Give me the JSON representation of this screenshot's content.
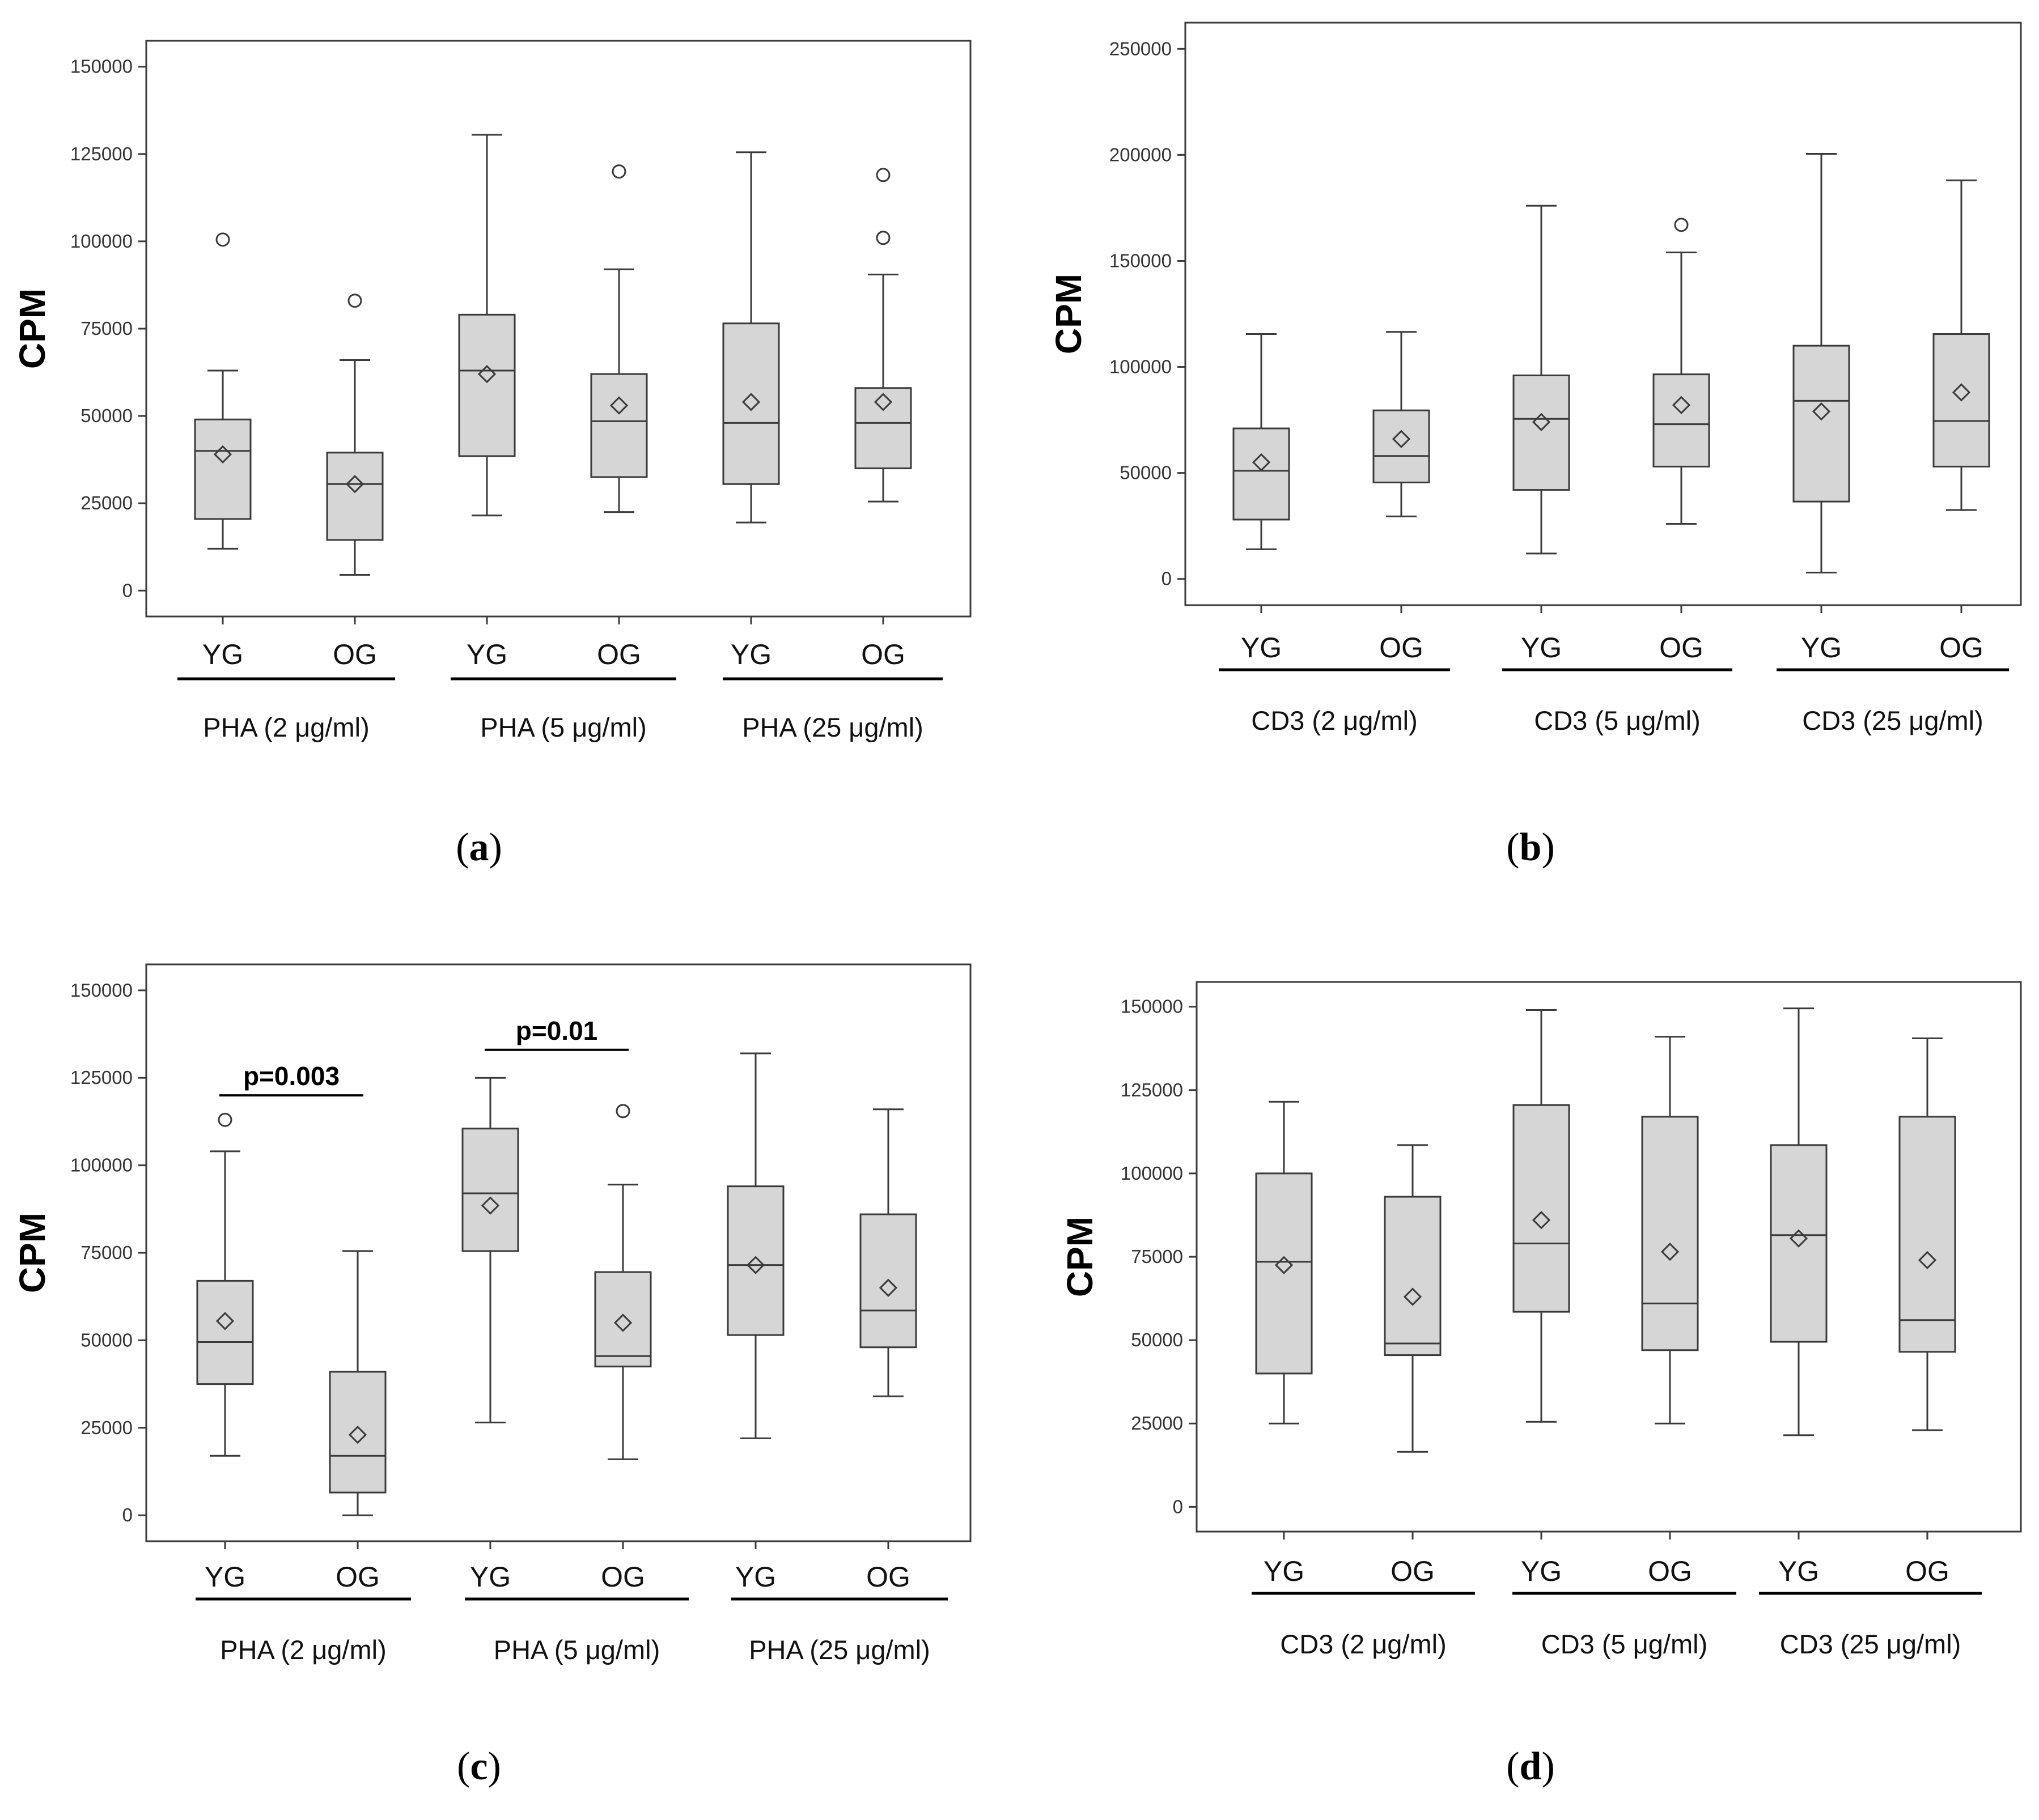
{
  "colors": {
    "box_fill": "#d6d6d6",
    "stroke": "#3a3a3a",
    "background": "#ffffff"
  },
  "chart_data": [
    {
      "id": "a",
      "type": "boxplot",
      "panel_label": "a",
      "ylabel": "CPM",
      "ylim": [
        0,
        150000
      ],
      "yticks": [
        0,
        25000,
        50000,
        75000,
        100000,
        125000,
        150000
      ],
      "categories": [
        "YG",
        "OG",
        "YG",
        "OG",
        "YG",
        "OG"
      ],
      "groups": [
        {
          "label": "PHA (2 μg/ml)",
          "members": [
            0,
            1
          ]
        },
        {
          "label": "PHA (5 μg/ml)",
          "members": [
            2,
            3
          ]
        },
        {
          "label": "PHA (25 μg/ml)",
          "members": [
            4,
            5
          ]
        }
      ],
      "boxes": [
        {
          "whisker_low": 12000,
          "q1": 20500,
          "median": 40000,
          "q3": 49000,
          "whisker_high": 63000,
          "mean": 39000,
          "outliers": [
            100500
          ]
        },
        {
          "whisker_low": 4500,
          "q1": 14500,
          "median": 30500,
          "q3": 39500,
          "whisker_high": 66000,
          "mean": 30500,
          "outliers": [
            83000
          ]
        },
        {
          "whisker_low": 21500,
          "q1": 38500,
          "median": 63000,
          "q3": 79000,
          "whisker_high": 130500,
          "mean": 62000,
          "outliers": []
        },
        {
          "whisker_low": 22500,
          "q1": 32500,
          "median": 48500,
          "q3": 62000,
          "whisker_high": 92000,
          "mean": 53000,
          "outliers": [
            120000
          ]
        },
        {
          "whisker_low": 19500,
          "q1": 30500,
          "median": 48000,
          "q3": 76500,
          "whisker_high": 125500,
          "mean": 54000,
          "outliers": []
        },
        {
          "whisker_low": 25500,
          "q1": 35000,
          "median": 48000,
          "q3": 58000,
          "whisker_high": 90500,
          "mean": 54000,
          "outliers": [
            101000,
            119000
          ]
        }
      ],
      "annotations": []
    },
    {
      "id": "b",
      "type": "boxplot",
      "panel_label": "b",
      "ylabel": "CPM",
      "ylim": [
        0,
        250000
      ],
      "yticks": [
        0,
        50000,
        100000,
        150000,
        200000,
        250000
      ],
      "categories": [
        "YG",
        "OG",
        "YG",
        "OG",
        "YG",
        "OG"
      ],
      "groups": [
        {
          "label": "CD3 (2 μg/ml)",
          "members": [
            0,
            1
          ]
        },
        {
          "label": "CD3 (5 μg/ml)",
          "members": [
            2,
            3
          ]
        },
        {
          "label": "CD3 (25 μg/ml)",
          "members": [
            4,
            5
          ]
        }
      ],
      "boxes": [
        {
          "whisker_low": 14000,
          "q1": 28000,
          "median": 51000,
          "q3": 71000,
          "whisker_high": 115500,
          "mean": 55000,
          "outliers": []
        },
        {
          "whisker_low": 29500,
          "q1": 45500,
          "median": 58000,
          "q3": 79500,
          "whisker_high": 116500,
          "mean": 66000,
          "outliers": []
        },
        {
          "whisker_low": 12000,
          "q1": 42000,
          "median": 75500,
          "q3": 96000,
          "whisker_high": 176000,
          "mean": 74000,
          "outliers": []
        },
        {
          "whisker_low": 26000,
          "q1": 53000,
          "median": 73000,
          "q3": 96500,
          "whisker_high": 154000,
          "mean": 82000,
          "outliers": [
            167000
          ]
        },
        {
          "whisker_low": 3000,
          "q1": 36500,
          "median": 84000,
          "q3": 110000,
          "whisker_high": 200500,
          "mean": 79000,
          "outliers": []
        },
        {
          "whisker_low": 32500,
          "q1": 53000,
          "median": 74500,
          "q3": 115500,
          "whisker_high": 188000,
          "mean": 88000,
          "outliers": []
        }
      ],
      "annotations": []
    },
    {
      "id": "c",
      "type": "boxplot",
      "panel_label": "c",
      "ylabel": "CPM",
      "ylim": [
        0,
        150000
      ],
      "yticks": [
        0,
        25000,
        50000,
        75000,
        100000,
        125000,
        150000
      ],
      "categories": [
        "YG",
        "OG",
        "YG",
        "OG",
        "YG",
        "OG"
      ],
      "groups": [
        {
          "label": "PHA (2 μg/ml)",
          "members": [
            0,
            1
          ]
        },
        {
          "label": "PHA (5 μg/ml)",
          "members": [
            2,
            3
          ]
        },
        {
          "label": "PHA (25 μg/ml)",
          "members": [
            4,
            5
          ]
        }
      ],
      "boxes": [
        {
          "whisker_low": 17000,
          "q1": 37500,
          "median": 49500,
          "q3": 67000,
          "whisker_high": 104000,
          "mean": 55500,
          "outliers": [
            113000
          ]
        },
        {
          "whisker_low": 0,
          "q1": 6500,
          "median": 17000,
          "q3": 41000,
          "whisker_high": 75500,
          "mean": 23000,
          "outliers": []
        },
        {
          "whisker_low": 26500,
          "q1": 75500,
          "median": 92000,
          "q3": 110500,
          "whisker_high": 125000,
          "mean": 88500,
          "outliers": []
        },
        {
          "whisker_low": 16000,
          "q1": 42500,
          "median": 45500,
          "q3": 69500,
          "whisker_high": 94500,
          "mean": 55000,
          "outliers": [
            115500
          ]
        },
        {
          "whisker_low": 22000,
          "q1": 51500,
          "median": 71500,
          "q3": 94000,
          "whisker_high": 132000,
          "mean": 71500,
          "outliers": []
        },
        {
          "whisker_low": 34000,
          "q1": 48000,
          "median": 58500,
          "q3": 86000,
          "whisker_high": 116000,
          "mean": 65000,
          "outliers": []
        }
      ],
      "annotations": [
        {
          "text": "p=0.003",
          "from": 0,
          "to": 1,
          "y": 120000
        },
        {
          "text": "p=0.01",
          "from": 2,
          "to": 3,
          "y": 133000
        }
      ]
    },
    {
      "id": "d",
      "type": "boxplot",
      "panel_label": "d",
      "ylabel": "CPM",
      "ylim": [
        0,
        150000
      ],
      "yticks": [
        0,
        25000,
        50000,
        75000,
        100000,
        125000,
        150000
      ],
      "categories": [
        "YG",
        "OG",
        "YG",
        "OG",
        "YG",
        "OG"
      ],
      "groups": [
        {
          "label": "CD3 (2 μg/ml)",
          "members": [
            0,
            1
          ]
        },
        {
          "label": "CD3 (5 μg/ml)",
          "members": [
            2,
            3
          ]
        },
        {
          "label": "CD3 (25 μg/ml)",
          "members": [
            4,
            5
          ]
        }
      ],
      "boxes": [
        {
          "whisker_low": 25000,
          "q1": 40000,
          "median": 73500,
          "q3": 100000,
          "whisker_high": 121500,
          "mean": 72500,
          "outliers": []
        },
        {
          "whisker_low": 16500,
          "q1": 45500,
          "median": 49000,
          "q3": 93000,
          "whisker_high": 108500,
          "mean": 63000,
          "outliers": []
        },
        {
          "whisker_low": 25500,
          "q1": 58500,
          "median": 79000,
          "q3": 120500,
          "whisker_high": 149000,
          "mean": 86000,
          "outliers": []
        },
        {
          "whisker_low": 25000,
          "q1": 47000,
          "median": 61000,
          "q3": 117000,
          "whisker_high": 141000,
          "mean": 76500,
          "outliers": []
        },
        {
          "whisker_low": 21500,
          "q1": 49500,
          "median": 81500,
          "q3": 108500,
          "whisker_high": 149500,
          "mean": 80500,
          "outliers": []
        },
        {
          "whisker_low": 23000,
          "q1": 46500,
          "median": 56000,
          "q3": 117000,
          "whisker_high": 140500,
          "mean": 74000,
          "outliers": []
        }
      ],
      "annotations": []
    }
  ]
}
